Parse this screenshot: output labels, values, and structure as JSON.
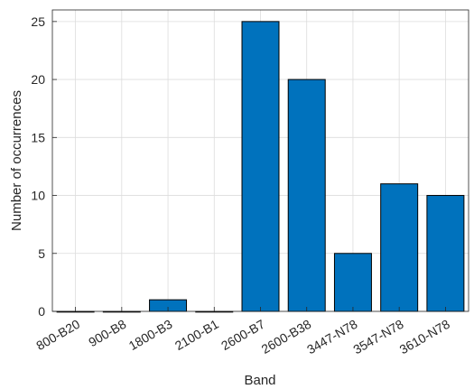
{
  "chart_data": {
    "type": "bar",
    "title": "",
    "xlabel": "Band",
    "ylabel": "Number of occurrences",
    "categories": [
      "800-B20",
      "900-B8",
      "1800-B3",
      "2100-B1",
      "2600-B7",
      "2600-B38",
      "3447-N78",
      "3547-N78",
      "3610-N78"
    ],
    "values": [
      0,
      0,
      1,
      0,
      25,
      20,
      5,
      11,
      10
    ],
    "ylim": [
      0,
      26
    ],
    "yticks": [
      0,
      5,
      10,
      15,
      20,
      25
    ],
    "grid": true,
    "bar_color": "#0072BD"
  }
}
